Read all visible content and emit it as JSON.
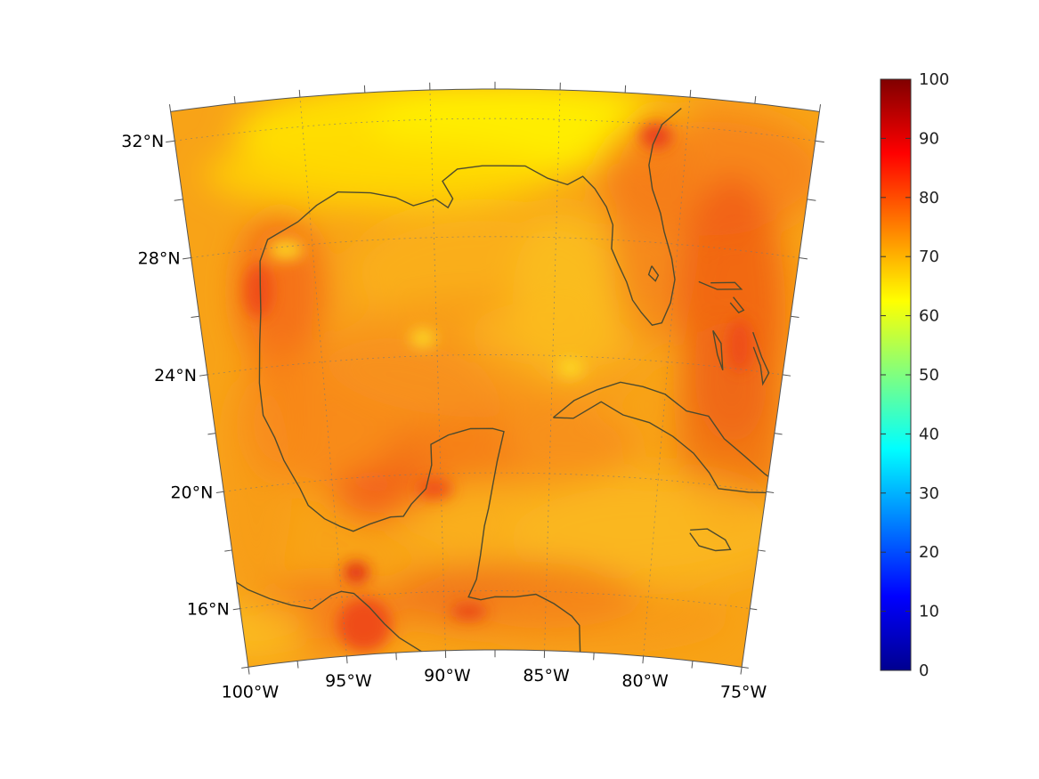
{
  "map": {
    "region": "Gulf of Mexico and Caribbean",
    "projection": "conic",
    "lon_range": [
      -100,
      -75
    ],
    "lat_range": [
      14,
      33
    ],
    "graticule": "dotted",
    "coastline_color": "#4d4a2e"
  },
  "axes": {
    "lat_ticks": [
      {
        "value": 32,
        "label": "32°N"
      },
      {
        "value": 28,
        "label": "28°N"
      },
      {
        "value": 24,
        "label": "24°N"
      },
      {
        "value": 20,
        "label": "20°N"
      },
      {
        "value": 16,
        "label": "16°N"
      }
    ],
    "lon_ticks": [
      {
        "value": -100,
        "label": "100°W"
      },
      {
        "value": -95,
        "label": "95°W"
      },
      {
        "value": -90,
        "label": "90°W"
      },
      {
        "value": -85,
        "label": "85°W"
      },
      {
        "value": -80,
        "label": "80°W"
      },
      {
        "value": -75,
        "label": "75°W"
      }
    ]
  },
  "colorbar": {
    "colormap": "jet",
    "min": 0,
    "max": 100,
    "ticks": [
      "0",
      "10",
      "20",
      "30",
      "40",
      "50",
      "60",
      "70",
      "80",
      "90",
      "100"
    ]
  },
  "field": {
    "dominant_range": [
      62,
      85
    ],
    "background_value": 72
  }
}
